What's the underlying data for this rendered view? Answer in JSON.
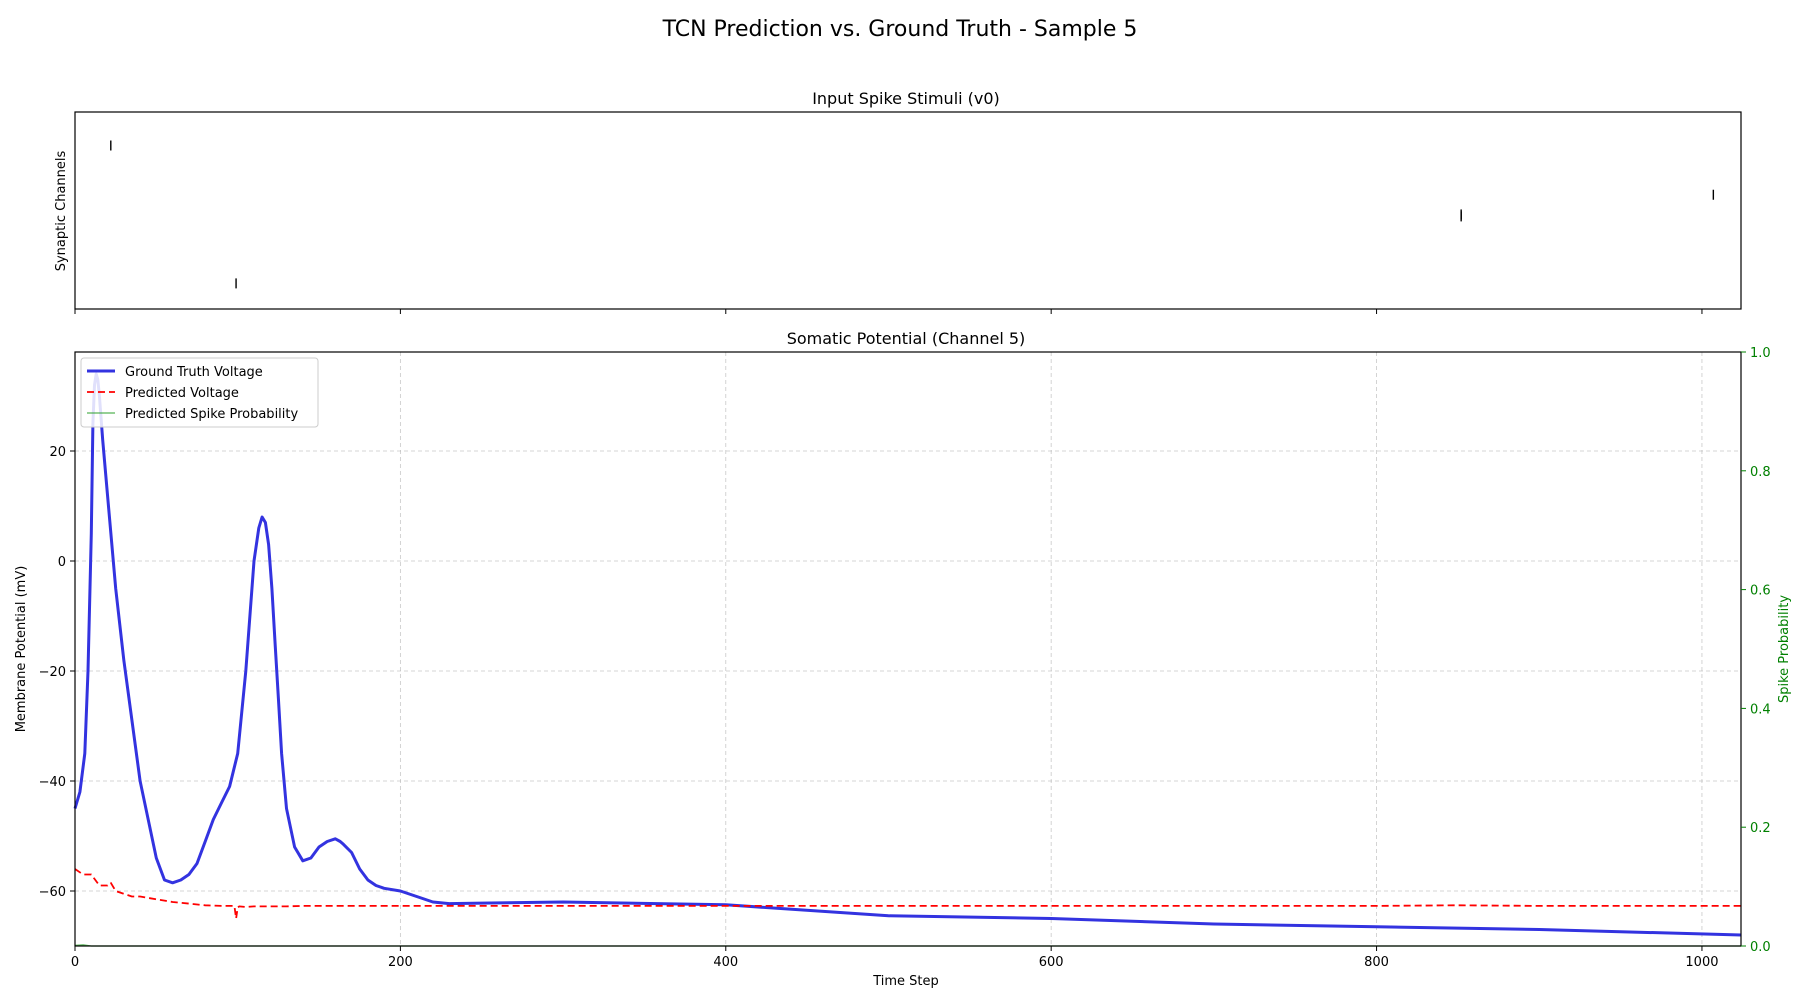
{
  "figure": {
    "suptitle": "TCN Prediction vs. Ground Truth - Sample 5"
  },
  "colors": {
    "ground_truth": "#3333e0",
    "predicted_voltage": "#ff0000",
    "spike_probability": "#2ca02c",
    "right_axis": "#008000"
  },
  "chart_data": [
    {
      "type": "scatter",
      "subtype": "raster",
      "title": "Input Spike Stimuli (v0)",
      "xlabel": "",
      "ylabel": "Synaptic Channels",
      "xlim": [
        0,
        1024
      ],
      "ylim": [
        0,
        1
      ],
      "shared_x_ticks": [
        0,
        200,
        400,
        600,
        800,
        1000
      ],
      "spikes": [
        {
          "t": 22,
          "y": 0.83
        },
        {
          "t": 99,
          "y": 0.13
        },
        {
          "t": 852,
          "y": 0.48
        },
        {
          "t": 852,
          "y": 0.47
        },
        {
          "t": 1007,
          "y": 0.58
        }
      ]
    },
    {
      "type": "line",
      "title": "Somatic Potential (Channel 5)",
      "xlabel": "Time Step",
      "ylabel": "Membrane Potential (mV)",
      "y2label": "Spike Probability",
      "xlim": [
        0,
        1024
      ],
      "ylim": [
        -70,
        38
      ],
      "y2lim": [
        0,
        1
      ],
      "xticks": [
        "0",
        "200",
        "400",
        "600",
        "800",
        "1000"
      ],
      "yticks": [
        "20",
        "0",
        "−20",
        "−40",
        "−60"
      ],
      "y2ticks": [
        "0.0",
        "0.2",
        "0.4",
        "0.6",
        "0.8",
        "1.0"
      ],
      "grid": true,
      "legend_position": "upper-left",
      "series": [
        {
          "name": "Ground Truth Voltage",
          "style": "solid",
          "x": [
            0,
            3,
            6,
            8,
            10,
            11,
            12,
            13,
            14,
            15,
            17,
            20,
            25,
            30,
            40,
            50,
            55,
            60,
            65,
            70,
            75,
            80,
            85,
            90,
            95,
            100,
            105,
            110,
            113,
            115,
            117,
            119,
            121,
            123,
            125,
            127,
            130,
            135,
            140,
            145,
            150,
            155,
            160,
            163,
            165,
            170,
            175,
            180,
            185,
            190,
            200,
            210,
            220,
            230,
            250,
            300,
            400,
            500,
            600,
            700,
            800,
            900,
            1024
          ],
          "y": [
            -45,
            -42,
            -35,
            -20,
            5,
            25,
            32,
            34,
            33,
            30,
            22,
            12,
            -5,
            -18,
            -40,
            -54,
            -58,
            -58.5,
            -58,
            -57,
            -55,
            -51,
            -47,
            -44,
            -41,
            -35,
            -20,
            0,
            6,
            8,
            7,
            3,
            -5,
            -15,
            -25,
            -35,
            -45,
            -52,
            -54.5,
            -54,
            -52,
            -51,
            -50.5,
            -51,
            -51.5,
            -53,
            -56,
            -58,
            -59,
            -59.5,
            -60,
            -61,
            -62,
            -62.3,
            -62.2,
            -62.0,
            -62.5,
            -64.5,
            -65,
            -66,
            -66.5,
            -67,
            -68
          ]
        },
        {
          "name": "Predicted Voltage",
          "style": "dashed",
          "x": [
            0,
            5,
            10,
            15,
            20,
            22,
            25,
            30,
            35,
            40,
            50,
            60,
            70,
            80,
            90,
            98,
            99,
            100,
            101,
            105,
            110,
            120,
            130,
            140,
            150,
            200,
            400,
            600,
            800,
            850,
            900,
            1024
          ],
          "y": [
            -56,
            -57,
            -57,
            -59,
            -59,
            -58.5,
            -60,
            -60.5,
            -61,
            -61,
            -61.5,
            -62,
            -62.3,
            -62.6,
            -62.7,
            -62.7,
            -65,
            -63,
            -62.8,
            -62.9,
            -62.8,
            -62.8,
            -62.8,
            -62.7,
            -62.7,
            -62.7,
            -62.7,
            -62.7,
            -62.7,
            -62.6,
            -62.7,
            -62.7
          ]
        },
        {
          "name": "Predicted Spike Probability",
          "style": "solid-thin",
          "axis": "right",
          "x": [
            0,
            5,
            10,
            1024
          ],
          "y": [
            0.001,
            0.002,
            0.0,
            0.0
          ]
        }
      ]
    }
  ]
}
